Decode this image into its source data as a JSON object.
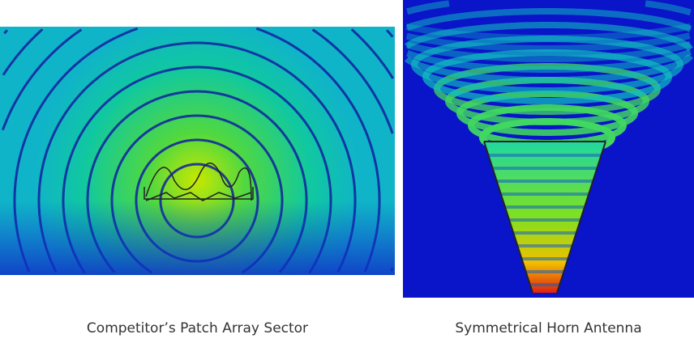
{
  "figures": [
    {
      "caption": "Competitor’s Patch Array Sector"
    },
    {
      "caption": "Symmetrical Horn Antenna"
    }
  ],
  "colors": {
    "field_low": "#0a14c8",
    "field_mid": "#00c8c8",
    "field_high": "#60e020",
    "field_peak": "#e02010"
  }
}
